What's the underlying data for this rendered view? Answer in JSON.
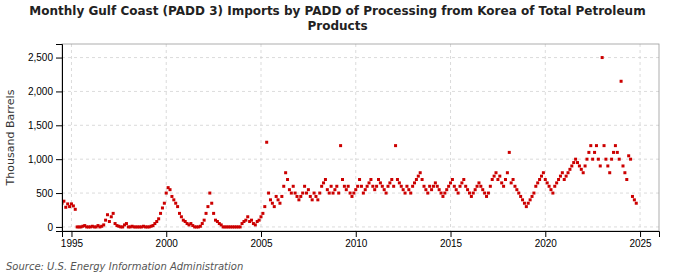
{
  "chart_data": {
    "type": "scatter",
    "title": "Monthly Gulf Coast (PADD 3) Imports by PADD of Processing from Korea of Total Petroleum\nProducts",
    "y_label": "Thousand Barrels",
    "source": "Source: U.S. Energy Information Administration",
    "color": "#cc0000",
    "marker": "square",
    "grid": true,
    "xlim": [
      1994.5,
      2026.0
    ],
    "ylim": [
      -60,
      2700
    ],
    "xticks": [
      1995,
      2000,
      2005,
      2010,
      2015,
      2020,
      2025
    ],
    "yticks": [
      0,
      500,
      {
        "value": 1000,
        "label": "1,000"
      },
      {
        "value": 1500,
        "label": "1,500"
      },
      {
        "value": 2000,
        "label": "2,000"
      },
      {
        "value": 2500,
        "label": "2,500"
      }
    ],
    "x": [
      1994.5,
      1994.6,
      1994.7,
      1994.8,
      1994.9,
      1995.0,
      1995.1,
      1995.2,
      1995.3,
      1995.4,
      1995.5,
      1995.6,
      1995.7,
      1995.8,
      1995.9,
      1996.0,
      1996.1,
      1996.2,
      1996.3,
      1996.4,
      1996.5,
      1996.6,
      1996.7,
      1996.8,
      1996.9,
      1997.0,
      1997.1,
      1997.2,
      1997.3,
      1997.4,
      1997.5,
      1997.6,
      1997.7,
      1997.8,
      1997.9,
      1998.0,
      1998.1,
      1998.2,
      1998.3,
      1998.4,
      1998.5,
      1998.6,
      1998.7,
      1998.8,
      1998.9,
      1999.0,
      1999.1,
      1999.2,
      1999.3,
      1999.4,
      1999.5,
      1999.6,
      1999.7,
      1999.8,
      1999.9,
      2000.0,
      2000.1,
      2000.2,
      2000.3,
      2000.4,
      2000.5,
      2000.6,
      2000.7,
      2000.8,
      2000.9,
      2001.0,
      2001.1,
      2001.2,
      2001.3,
      2001.4,
      2001.5,
      2001.6,
      2001.7,
      2001.8,
      2001.9,
      2002.0,
      2002.1,
      2002.2,
      2002.3,
      2002.4,
      2002.5,
      2002.6,
      2002.7,
      2002.8,
      2002.9,
      2003.0,
      2003.1,
      2003.2,
      2003.3,
      2003.4,
      2003.5,
      2003.6,
      2003.7,
      2003.8,
      2003.9,
      2004.0,
      2004.1,
      2004.2,
      2004.3,
      2004.4,
      2004.5,
      2004.6,
      2004.7,
      2004.8,
      2004.9,
      2005.0,
      2005.1,
      2005.2,
      2005.3,
      2005.4,
      2005.5,
      2005.6,
      2005.7,
      2005.8,
      2005.9,
      2006.0,
      2006.1,
      2006.2,
      2006.3,
      2006.4,
      2006.5,
      2006.6,
      2006.7,
      2006.8,
      2006.9,
      2007.0,
      2007.1,
      2007.2,
      2007.3,
      2007.4,
      2007.5,
      2007.6,
      2007.7,
      2007.8,
      2007.9,
      2008.0,
      2008.1,
      2008.2,
      2008.3,
      2008.4,
      2008.5,
      2008.6,
      2008.7,
      2008.8,
      2008.9,
      2009.0,
      2009.1,
      2009.2,
      2009.3,
      2009.4,
      2009.5,
      2009.6,
      2009.7,
      2009.8,
      2009.9,
      2010.0,
      2010.1,
      2010.2,
      2010.3,
      2010.4,
      2010.5,
      2010.6,
      2010.7,
      2010.8,
      2010.9,
      2011.0,
      2011.1,
      2011.2,
      2011.3,
      2011.4,
      2011.5,
      2011.6,
      2011.7,
      2011.8,
      2011.9,
      2012.0,
      2012.1,
      2012.2,
      2012.3,
      2012.4,
      2012.5,
      2012.6,
      2012.7,
      2012.8,
      2012.9,
      2013.0,
      2013.1,
      2013.2,
      2013.3,
      2013.4,
      2013.5,
      2013.6,
      2013.7,
      2013.8,
      2013.9,
      2014.0,
      2014.1,
      2014.2,
      2014.3,
      2014.4,
      2014.5,
      2014.6,
      2014.7,
      2014.8,
      2014.9,
      2015.0,
      2015.1,
      2015.2,
      2015.3,
      2015.4,
      2015.5,
      2015.6,
      2015.7,
      2015.8,
      2015.9,
      2016.0,
      2016.1,
      2016.2,
      2016.3,
      2016.4,
      2016.5,
      2016.6,
      2016.7,
      2016.8,
      2016.9,
      2017.0,
      2017.1,
      2017.2,
      2017.3,
      2017.4,
      2017.5,
      2017.6,
      2017.7,
      2017.8,
      2017.9,
      2018.0,
      2018.1,
      2018.2,
      2018.3,
      2018.4,
      2018.5,
      2018.6,
      2018.7,
      2018.8,
      2018.9,
      2019.0,
      2019.1,
      2019.2,
      2019.3,
      2019.4,
      2019.5,
      2019.6,
      2019.7,
      2019.8,
      2019.9,
      2020.0,
      2020.1,
      2020.2,
      2020.3,
      2020.4,
      2020.5,
      2020.6,
      2020.7,
      2020.8,
      2020.9,
      2021.0,
      2021.1,
      2021.2,
      2021.3,
      2021.4,
      2021.5,
      2021.6,
      2021.7,
      2021.8,
      2021.9,
      2022.0,
      2022.1,
      2022.2,
      2022.3,
      2022.4,
      2022.5,
      2022.6,
      2022.7,
      2022.8,
      2022.9,
      2023.0,
      2023.1,
      2023.2,
      2023.3,
      2023.4,
      2023.5,
      2023.6,
      2023.7,
      2023.8,
      2023.9,
      2024.0,
      2024.1,
      2024.2,
      2024.3,
      2024.4,
      2024.5,
      2024.6,
      2024.7,
      2024.8
    ],
    "values": [
      350,
      380,
      290,
      340,
      300,
      340,
      310,
      260,
      0,
      0,
      0,
      10,
      20,
      0,
      0,
      0,
      10,
      0,
      0,
      20,
      0,
      10,
      30,
      100,
      180,
      80,
      150,
      200,
      50,
      20,
      10,
      0,
      0,
      30,
      50,
      0,
      0,
      10,
      0,
      0,
      0,
      0,
      0,
      10,
      0,
      0,
      0,
      10,
      20,
      50,
      80,
      120,
      200,
      280,
      350,
      500,
      580,
      550,
      450,
      400,
      350,
      300,
      200,
      150,
      100,
      80,
      50,
      30,
      50,
      20,
      0,
      0,
      0,
      10,
      50,
      100,
      200,
      300,
      500,
      350,
      200,
      100,
      80,
      50,
      30,
      0,
      0,
      0,
      0,
      0,
      0,
      0,
      0,
      0,
      0,
      50,
      80,
      100,
      150,
      80,
      100,
      50,
      30,
      80,
      100,
      150,
      200,
      300,
      1250,
      500,
      400,
      350,
      300,
      450,
      400,
      350,
      450,
      600,
      800,
      700,
      550,
      500,
      600,
      500,
      450,
      400,
      450,
      500,
      600,
      500,
      550,
      450,
      400,
      500,
      450,
      400,
      500,
      600,
      650,
      700,
      550,
      500,
      600,
      500,
      550,
      600,
      500,
      1200,
      700,
      600,
      550,
      600,
      500,
      450,
      500,
      550,
      600,
      700,
      600,
      500,
      550,
      600,
      650,
      700,
      600,
      550,
      600,
      700,
      650,
      600,
      550,
      500,
      600,
      650,
      700,
      600,
      1200,
      700,
      650,
      600,
      550,
      500,
      600,
      550,
      500,
      600,
      650,
      700,
      750,
      800,
      700,
      600,
      550,
      500,
      600,
      550,
      600,
      650,
      600,
      550,
      500,
      450,
      500,
      550,
      600,
      650,
      700,
      600,
      550,
      500,
      600,
      650,
      700,
      600,
      550,
      500,
      450,
      500,
      550,
      600,
      650,
      600,
      550,
      500,
      450,
      500,
      600,
      700,
      750,
      800,
      700,
      750,
      650,
      600,
      700,
      800,
      1100,
      650,
      700,
      600,
      550,
      500,
      450,
      400,
      350,
      300,
      350,
      400,
      450,
      500,
      600,
      650,
      700,
      750,
      800,
      700,
      650,
      600,
      550,
      500,
      600,
      650,
      700,
      750,
      800,
      700,
      750,
      800,
      850,
      900,
      950,
      1000,
      950,
      900,
      850,
      800,
      900,
      1000,
      1100,
      1200,
      1000,
      1100,
      1200,
      1000,
      900,
      2500,
      1200,
      1000,
      900,
      800,
      1000,
      1100,
      1200,
      1100,
      1000,
      2150,
      900,
      800,
      700,
      1050,
      1000,
      450,
      400,
      350
    ]
  }
}
